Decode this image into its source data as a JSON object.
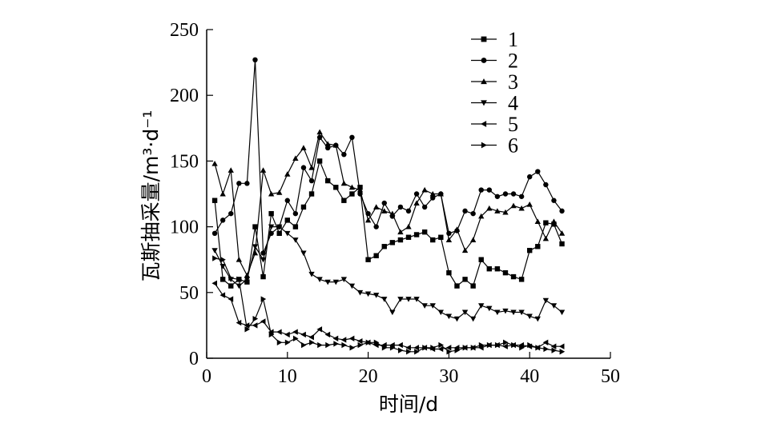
{
  "chart_data": {
    "type": "line",
    "xlabel": "时间/d",
    "ylabel": "瓦斯抽采量/m³·d⁻¹",
    "xlim": [
      0,
      50
    ],
    "ylim": [
      0,
      250
    ],
    "xticks": [
      "0",
      "10",
      "20",
      "30",
      "40",
      "50"
    ],
    "yticks": [
      "0",
      "50",
      "100",
      "150",
      "200",
      "250"
    ],
    "grid": false,
    "legend_position": "top-right",
    "x": [
      1,
      2,
      3,
      4,
      5,
      6,
      7,
      8,
      9,
      10,
      11,
      12,
      13,
      14,
      15,
      16,
      17,
      18,
      19,
      20,
      21,
      22,
      23,
      24,
      25,
      26,
      27,
      28,
      29,
      30,
      31,
      32,
      33,
      34,
      35,
      36,
      37,
      38,
      39,
      40,
      41,
      42,
      43,
      44
    ],
    "series": [
      {
        "name": "1",
        "marker": "square",
        "values": [
          120,
          60,
          55,
          60,
          58,
          100,
          62,
          110,
          95,
          105,
          100,
          115,
          125,
          150,
          135,
          130,
          120,
          125,
          130,
          75,
          78,
          85,
          88,
          90,
          92,
          94,
          96,
          90,
          92,
          65,
          55,
          60,
          55,
          75,
          68,
          68,
          65,
          62,
          60,
          82,
          85,
          103,
          102,
          87
        ]
      },
      {
        "name": "2",
        "marker": "circle",
        "values": [
          95,
          105,
          110,
          133,
          133,
          227,
          80,
          95,
          100,
          120,
          110,
          145,
          135,
          168,
          160,
          162,
          155,
          168,
          125,
          110,
          100,
          118,
          108,
          115,
          112,
          125,
          115,
          122,
          125,
          95,
          97,
          112,
          110,
          128,
          128,
          123,
          125,
          125,
          123,
          138,
          142,
          132,
          120,
          112
        ]
      },
      {
        "name": "3",
        "marker": "triangle-up",
        "values": [
          148,
          125,
          143,
          75,
          63,
          80,
          143,
          125,
          126,
          140,
          152,
          160,
          145,
          172,
          163,
          162,
          133,
          130,
          128,
          105,
          115,
          112,
          110,
          96,
          100,
          118,
          128,
          125,
          125,
          90,
          98,
          82,
          90,
          108,
          114,
          112,
          111,
          116,
          114,
          117,
          104,
          91,
          104,
          95
        ]
      },
      {
        "name": "4",
        "marker": "triangle-down",
        "values": [
          82,
          70,
          60,
          55,
          60,
          85,
          75,
          100,
          100,
          95,
          90,
          80,
          64,
          60,
          58,
          58,
          60,
          55,
          50,
          49,
          48,
          45,
          35,
          45,
          45,
          45,
          40,
          40,
          35,
          32,
          30,
          35,
          30,
          40,
          38,
          35,
          36,
          35,
          35,
          32,
          30,
          44,
          40,
          35
        ]
      },
      {
        "name": "5",
        "marker": "triangle-left",
        "values": [
          57,
          48,
          45,
          27,
          25,
          25,
          28,
          20,
          20,
          18,
          20,
          18,
          16,
          22,
          18,
          15,
          14,
          15,
          13,
          12,
          10,
          10,
          10,
          10,
          8,
          8,
          8,
          7,
          7,
          8,
          8,
          8,
          8,
          8,
          10,
          10,
          9,
          10,
          10,
          9,
          8,
          12,
          9,
          9
        ]
      },
      {
        "name": "6",
        "marker": "triangle-right",
        "values": [
          76,
          75,
          61,
          60,
          22,
          30,
          45,
          18,
          12,
          12,
          15,
          10,
          12,
          10,
          10,
          11,
          10,
          8,
          10,
          12,
          12,
          8,
          8,
          6,
          5,
          5,
          8,
          8,
          10,
          5,
          6,
          8,
          8,
          10,
          10,
          10,
          12,
          10,
          8,
          10,
          8,
          7,
          6,
          5
        ]
      }
    ]
  }
}
